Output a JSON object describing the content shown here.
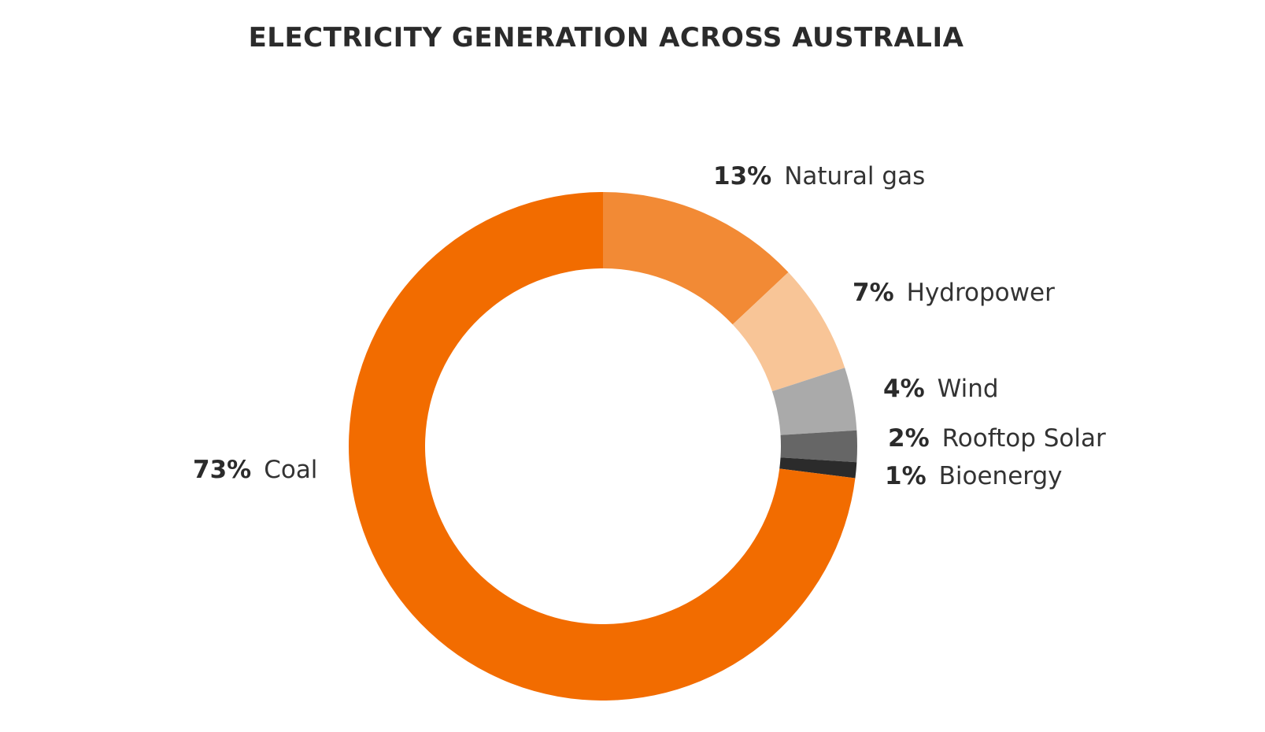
{
  "chart_data": {
    "type": "pie",
    "title": "ELECTRICITY GENERATION ACROSS AUSTRALIA",
    "donut": true,
    "slices": [
      {
        "label": "Natural gas",
        "value": 13,
        "value_label": "13%",
        "color": "#f28a35"
      },
      {
        "label": "Hydropower",
        "value": 7,
        "value_label": "7%",
        "color": "#f8c597"
      },
      {
        "label": "Wind",
        "value": 4,
        "value_label": "4%",
        "color": "#aaaaaa"
      },
      {
        "label": "Rooftop Solar",
        "value": 2,
        "value_label": "2%",
        "color": "#666666"
      },
      {
        "label": "Bioenergy",
        "value": 1,
        "value_label": "1%",
        "color": "#2b2b2b"
      },
      {
        "label": "Coal",
        "value": 73,
        "value_label": "73%",
        "color": "#f26c00"
      }
    ]
  }
}
